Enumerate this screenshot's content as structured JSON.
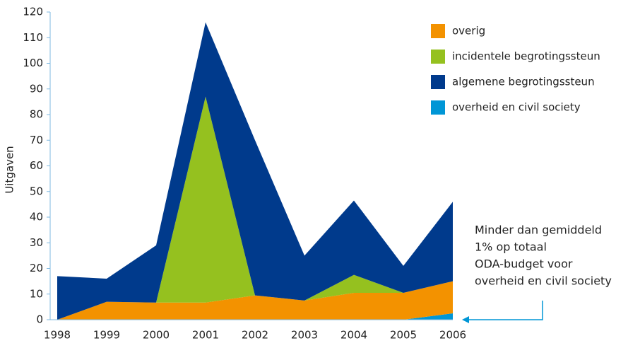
{
  "chart_data": {
    "type": "stacked-area",
    "y_label": "Uitgaven",
    "categories": [
      "1998",
      "1999",
      "2000",
      "2001",
      "2002",
      "2003",
      "2004",
      "2005",
      "2006"
    ],
    "series": [
      {
        "name": "overig",
        "color": "#f39200",
        "values": [
          0,
          7,
          6.7,
          6.7,
          9.5,
          7.5,
          10.5,
          10.5,
          12.5
        ]
      },
      {
        "name": "incidentele begrotingssteun",
        "color": "#95c11f",
        "values": [
          0,
          0,
          0,
          80.3,
          0,
          0,
          7,
          0,
          0
        ]
      },
      {
        "name": "algemene begrotingssteun",
        "color": "#003a8c",
        "values": [
          17,
          9,
          22.3,
          29,
          60.5,
          17.5,
          29,
          10.5,
          31
        ]
      },
      {
        "name": "overheid en civil society",
        "color": "#0096d6",
        "values": [
          0,
          0,
          0,
          0,
          0,
          0,
          0,
          0,
          2.5
        ]
      }
    ],
    "stack_order": [
      "overheid en civil society",
      "overig",
      "incidentele begrotingssteun",
      "algemene begrotingssteun"
    ],
    "ylim": [
      0,
      120
    ],
    "yticks": [
      0,
      10,
      20,
      30,
      40,
      50,
      60,
      70,
      80,
      90,
      100,
      110,
      120
    ],
    "legend": "top-right",
    "annotation": [
      "Minder dan gemiddeld",
      "1% op totaal",
      "ODA-budget voor",
      "overheid en civil society"
    ]
  }
}
